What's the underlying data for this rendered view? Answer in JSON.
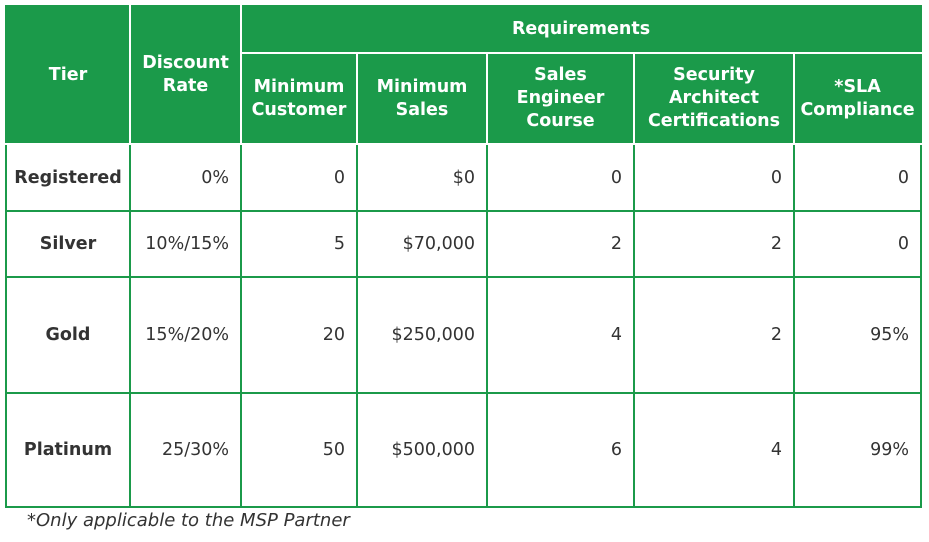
{
  "headers": {
    "tier": "Tier",
    "discount_rate": "Discount Rate",
    "requirements": "Requirements",
    "min_customer": "Minimum Customer",
    "min_sales": "Minimum Sales",
    "sales_engineer_course": "Sales Engineer Course",
    "security_architect": "Security Architect Certifications",
    "sla_compliance": "*SLA Compliance"
  },
  "rows": [
    {
      "tier": "Registered",
      "discount": "0%",
      "min_customer": "0",
      "min_sales": "$0",
      "sales_engineer": "0",
      "security_architect": "0",
      "sla": "0"
    },
    {
      "tier": "Silver",
      "discount": "10%/15%",
      "min_customer": "5",
      "min_sales": "$70,000",
      "sales_engineer": "2",
      "security_architect": "2",
      "sla": "0"
    },
    {
      "tier": "Gold",
      "discount": "15%/20%",
      "min_customer": "20",
      "min_sales": "$250,000",
      "sales_engineer": "4",
      "security_architect": "2",
      "sla": "95%"
    },
    {
      "tier": "Platinum",
      "discount": "25/30%",
      "min_customer": "50",
      "min_sales": "$500,000",
      "sales_engineer": "6",
      "security_architect": "4",
      "sla": "99%"
    }
  ],
  "footnote": "*Only applicable to the MSP Partner",
  "colors": {
    "header_bg": "#1b9a4a",
    "border": "#1b9a4a",
    "text": "#333333"
  }
}
